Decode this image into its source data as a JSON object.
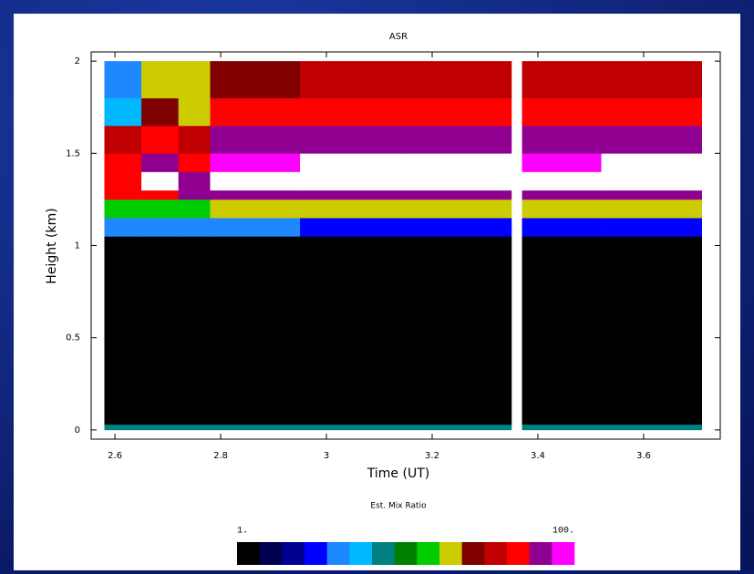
{
  "chart_data": {
    "type": "heatmap",
    "title": "ASR",
    "x_label": "Time (UT)",
    "y_label": "Height (km)",
    "x_edges": [
      2.58,
      2.65,
      2.72,
      2.78,
      2.95,
      3.15,
      3.35,
      3.37,
      3.52,
      3.71
    ],
    "y_edges": [
      0,
      0.03,
      1.05,
      1.15,
      1.25,
      1.3,
      1.4,
      1.5,
      1.65,
      1.8,
      2.0
    ],
    "z": [
      [
        8,
        8,
        8,
        8,
        8,
        8,
        null,
        8,
        8
      ],
      [
        1,
        1,
        1,
        1,
        1,
        1,
        null,
        1,
        1
      ],
      [
        4,
        4,
        4,
        4,
        3,
        3,
        null,
        3,
        3
      ],
      [
        14,
        14,
        14,
        16,
        18,
        20,
        null,
        18,
        18
      ],
      [
        40,
        50,
        60,
        60,
        60,
        60,
        null,
        60,
        60
      ],
      [
        40,
        150,
        60,
        150,
        150,
        150,
        null,
        150,
        150
      ],
      [
        50,
        60,
        50,
        90,
        150,
        120,
        null,
        80,
        120
      ],
      [
        30,
        40,
        30,
        60,
        60,
        60,
        null,
        60,
        60
      ],
      [
        5,
        25,
        20,
        40,
        40,
        40,
        null,
        40,
        40
      ],
      [
        4,
        20,
        20,
        25,
        30,
        30,
        null,
        30,
        30
      ]
    ],
    "xlim": [
      2.555,
      3.745
    ],
    "ylim": [
      -0.05,
      2.05
    ],
    "xticks": [
      2.6,
      2.8,
      3,
      3.2,
      3.4,
      3.6
    ],
    "yticks": [
      0,
      0.5,
      1,
      1.5,
      2
    ],
    "colorbar_label": "Est. Mix Ratio",
    "colorbar_lim": [
      1,
      100
    ],
    "colorbar_ticks": [
      {
        "value": 1,
        "label": "1."
      },
      {
        "value": 100,
        "label": "100."
      }
    ],
    "colorbar_log": true,
    "colors": [
      "#000000",
      "#000050",
      "#000090",
      "#0000ff",
      "#1e88ff",
      "#00b8ff",
      "#008080",
      "#008000",
      "#00cc00",
      "#cccc00",
      "#800000",
      "#c00000",
      "#ff0000",
      "#900090",
      "#ff00ff"
    ],
    "over_color": "#ffffff"
  }
}
